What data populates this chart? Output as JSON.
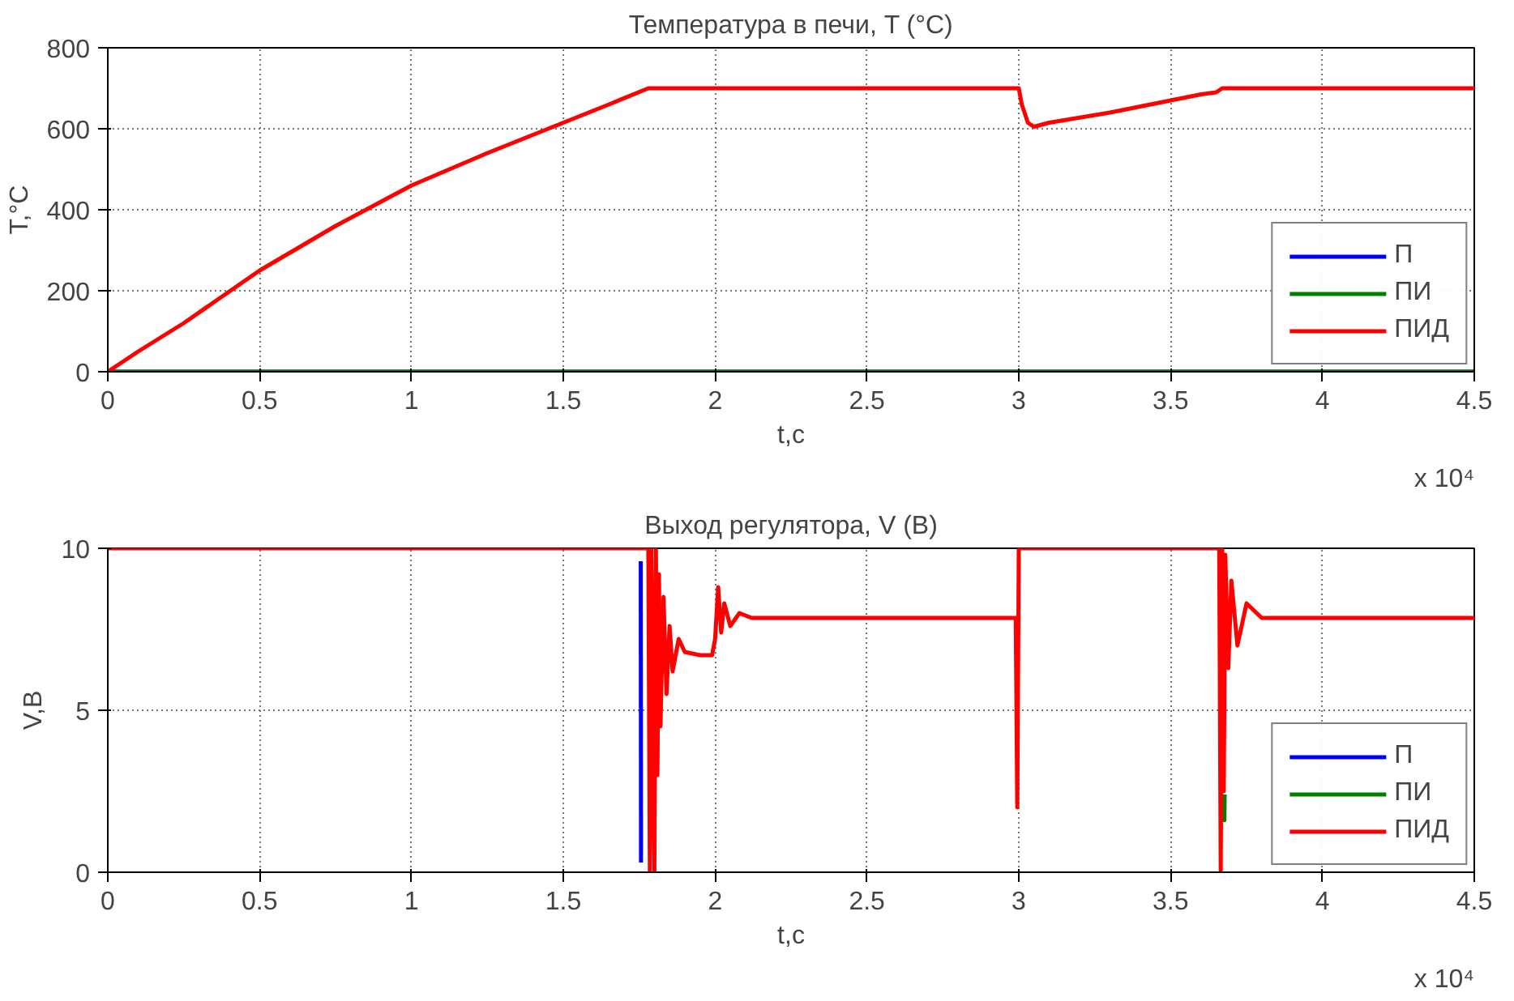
{
  "chart_data": [
    {
      "type": "line",
      "title": "Температура в печи, T (°C)",
      "xlabel": "t,c",
      "ylabel": "T,°C",
      "annotations": [
        "x 10⁴"
      ],
      "xlim": [
        0,
        4.5
      ],
      "xticks": [
        0,
        0.5,
        1,
        1.5,
        2,
        2.5,
        3,
        3.5,
        4,
        4.5
      ],
      "ylim": [
        0,
        800
      ],
      "yticks": [
        0,
        200,
        400,
        600,
        800
      ],
      "grid": true,
      "legend": "bottom right",
      "line_style": "solid",
      "x": [
        0,
        0.05,
        0.1,
        0.25,
        0.5,
        0.75,
        1.0,
        1.25,
        1.5,
        1.65,
        1.78,
        2.5,
        3.0,
        3.01,
        3.03,
        3.05,
        3.1,
        3.3,
        3.5,
        3.6,
        3.65,
        3.67,
        4.5
      ],
      "series": [
        {
          "name": "П",
          "color": "#0000ff",
          "values": [
            null,
            null,
            null,
            null,
            null,
            null,
            null,
            null,
            null,
            null,
            null,
            null,
            null,
            null,
            null,
            null,
            null,
            null,
            null,
            null,
            null,
            null,
            null
          ]
        },
        {
          "name": "ПИ",
          "color": "#008000",
          "values": [
            null,
            null,
            null,
            null,
            null,
            null,
            null,
            null,
            null,
            null,
            null,
            null,
            null,
            null,
            null,
            null,
            null,
            null,
            null,
            null,
            null,
            null,
            null
          ]
        },
        {
          "name": "ПИД",
          "color": "#ff0000",
          "values": [
            0,
            25,
            50,
            120,
            250,
            360,
            460,
            540,
            615,
            660,
            700,
            700,
            700,
            660,
            615,
            605,
            615,
            640,
            670,
            685,
            690,
            700,
            700
          ]
        }
      ]
    },
    {
      "type": "line",
      "title": "Выход регулятора, V (В)",
      "xlabel": "t,c",
      "ylabel": "V,В",
      "annotations": [
        "x 10⁴"
      ],
      "xlim": [
        0,
        4.5
      ],
      "xticks": [
        0,
        0.5,
        1,
        1.5,
        2,
        2.5,
        3,
        3.5,
        4,
        4.5
      ],
      "ylim": [
        0,
        10
      ],
      "yticks": [
        0,
        5,
        10
      ],
      "grid": true,
      "legend": "bottom right",
      "line_style": "solid",
      "series": [
        {
          "name": "П",
          "color": "#0000ff",
          "x": [
            1.755,
            1.756
          ],
          "values": [
            9.6,
            0.3
          ]
        },
        {
          "name": "ПИ",
          "color": "#008000",
          "x": [
            3.676,
            3.677,
            3.678
          ],
          "values": [
            2.4,
            1.6,
            2.4
          ]
        },
        {
          "name": "ПИД",
          "color": "#ff0000",
          "x": [
            0,
            1.78,
            1.785,
            1.79,
            1.8,
            1.805,
            1.81,
            1.815,
            1.82,
            1.83,
            1.84,
            1.85,
            1.86,
            1.88,
            1.9,
            1.95,
            1.99,
            2.0,
            2.01,
            2.02,
            2.03,
            2.05,
            2.08,
            2.12,
            2.5,
            2.99,
            2.995,
            3.0,
            3.005,
            3.66,
            3.665,
            3.67,
            3.675,
            3.68,
            3.69,
            3.7,
            3.72,
            3.75,
            3.8,
            4.5
          ],
          "values": [
            10,
            10,
            0,
            10,
            0,
            10,
            3,
            9.2,
            4.5,
            8.5,
            5.5,
            7.6,
            6.2,
            7.2,
            6.8,
            6.7,
            6.7,
            7.2,
            8.8,
            7.4,
            8.3,
            7.6,
            8.0,
            7.85,
            7.85,
            7.85,
            2.0,
            10,
            10,
            10,
            0,
            10,
            2.5,
            9.8,
            6.3,
            9,
            7,
            8.3,
            7.85,
            7.85
          ]
        }
      ]
    }
  ]
}
